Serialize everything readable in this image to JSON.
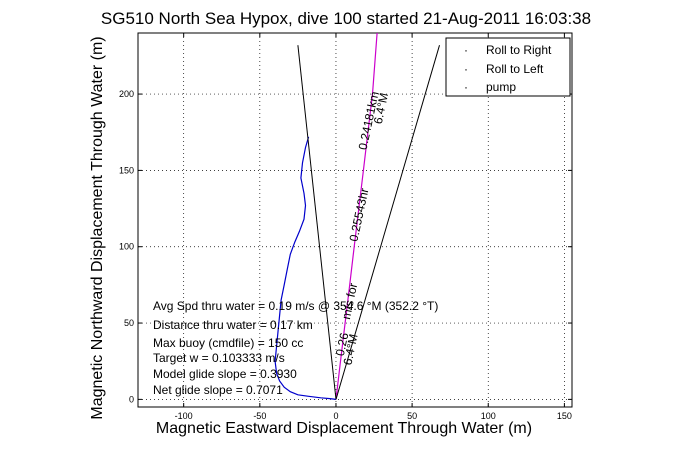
{
  "chart_data": {
    "type": "line",
    "title": "SG510 North Sea Hypox, dive 100 started 21-Aug-2011 16:03:38",
    "xlabel": "Magnetic Eastward Displacement Through Water (m)",
    "ylabel": "Magnetic Northward Displacement Through Water (m)",
    "xlim": [
      -130,
      155
    ],
    "ylim": [
      -5,
      240
    ],
    "xticks": [
      -100,
      -50,
      0,
      50,
      100,
      150
    ],
    "yticks": [
      0,
      50,
      100,
      150,
      200
    ],
    "grid": true,
    "legend_placement": "top-right",
    "legend": [
      {
        "label": "Roll to Right",
        "color": "#00cc00"
      },
      {
        "label": "Roll to Left",
        "color": "#ff0000"
      },
      {
        "label": "pump",
        "color": "#000000"
      }
    ],
    "series": [
      {
        "kind": "track",
        "color": "#0000cc",
        "x": [
          -18,
          -20,
          -22,
          -23,
          -21,
          -20,
          -21,
          -24,
          -27,
          -30,
          -32,
          -34,
          -36,
          -37,
          -38,
          -39,
          -40,
          -39,
          -37,
          -34,
          -30,
          -25,
          -18,
          -10,
          -4,
          0
        ],
        "y": [
          172,
          165,
          155,
          145,
          135,
          127,
          118,
          110,
          103,
          95,
          85,
          75,
          65,
          55,
          45,
          35,
          25,
          17,
          12,
          8,
          5,
          3,
          2,
          1,
          0.5,
          0
        ]
      },
      {
        "kind": "track",
        "color": "#cc00cc",
        "x": [
          0,
          3,
          6,
          9,
          12,
          15,
          18,
          21,
          24,
          27
        ],
        "y": [
          0,
          25,
          50,
          75,
          100,
          125,
          150,
          175,
          200,
          240
        ]
      },
      {
        "kind": "line",
        "color": "#000000",
        "x": [
          0,
          -25
        ],
        "y": [
          0,
          232
        ]
      },
      {
        "kind": "line",
        "color": "#000000",
        "x": [
          0,
          68
        ],
        "y": [
          0,
          232
        ]
      }
    ],
    "stats": [
      "Avg Spd thru water =  0.19 m/s @ 354.6   °M (352.2 °T)",
      "Distance thru water =  0.17 km",
      "Max buoy (cmdfile) = 150 cc",
      "Target w = 0.103333 m/s",
      "Model glide slope = 0.3930",
      "Net glide slope = 0.7071"
    ],
    "annotations": [
      "6.4°M",
      "0.24181km",
      "0.25543hr",
      "m/s for",
      "0.26",
      "6.4°M"
    ]
  }
}
